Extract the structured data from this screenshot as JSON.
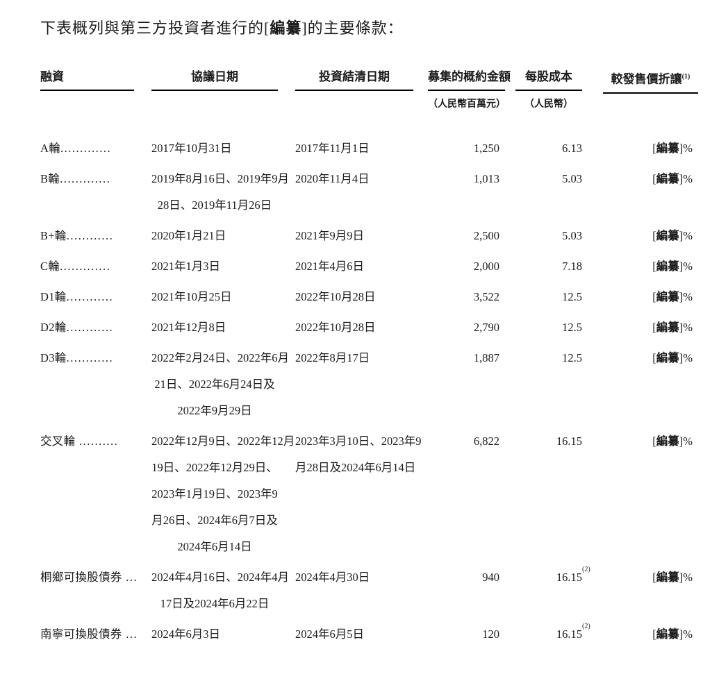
{
  "title": {
    "prefix": "下表概列與第三方投資者進行的[",
    "redacted": "編纂",
    "suffix": "]的主要條款："
  },
  "table": {
    "headers": {
      "financing": "融資",
      "agreement_date": "協議日期",
      "settlement_date": "投資結清日期",
      "amount": "募集的概約金額",
      "cost_per_share": "每股成本",
      "discount": "較發售價折讓",
      "discount_note": "(1)"
    },
    "units": {
      "amount_unit": "（人民幣百萬元）",
      "cost_unit": "（人民幣）"
    },
    "redacted_label": "編纂",
    "rows": [
      {
        "name": "A輪",
        "leader": ".............",
        "agreement_lines": [
          "2017年10月31日"
        ],
        "settlement_lines": [
          "2017年11月1日"
        ],
        "amount": "1,250",
        "cost": "6.13",
        "cost_sup": "",
        "discount": "[編纂]%"
      },
      {
        "name": "B輪",
        "leader": ".............",
        "agreement_lines": [
          "2019年8月16日、2019年9月",
          "28日、2019年11月26日"
        ],
        "settlement_lines": [
          "2020年11月4日"
        ],
        "amount": "1,013",
        "cost": "5.03",
        "cost_sup": "",
        "discount": "[編纂]%"
      },
      {
        "name": "B+輪",
        "leader": "............",
        "agreement_lines": [
          "2020年1月21日"
        ],
        "settlement_lines": [
          "2021年9月9日"
        ],
        "amount": "2,500",
        "cost": "5.03",
        "cost_sup": "",
        "discount": "[編纂]%"
      },
      {
        "name": "C輪",
        "leader": ".............",
        "agreement_lines": [
          "2021年1月3日"
        ],
        "settlement_lines": [
          "2021年4月6日"
        ],
        "amount": "2,000",
        "cost": "7.18",
        "cost_sup": "",
        "discount": "[編纂]%"
      },
      {
        "name": "D1輪",
        "leader": "............",
        "agreement_lines": [
          "2021年10月25日"
        ],
        "settlement_lines": [
          "2022年10月28日"
        ],
        "amount": "3,522",
        "cost": "12.5",
        "cost_sup": "",
        "discount": "[編纂]%"
      },
      {
        "name": "D2輪",
        "leader": "............",
        "agreement_lines": [
          "2021年12月8日"
        ],
        "settlement_lines": [
          "2022年10月28日"
        ],
        "amount": "2,790",
        "cost": "12.5",
        "cost_sup": "",
        "discount": "[編纂]%"
      },
      {
        "name": "D3輪",
        "leader": "............",
        "agreement_lines": [
          "2022年2月24日、2022年6月",
          "21日、2022年6月24日及",
          "2022年9月29日"
        ],
        "settlement_lines": [
          "2022年8月17日"
        ],
        "amount": "1,887",
        "cost": "12.5",
        "cost_sup": "",
        "discount": "[編纂]%"
      },
      {
        "name": "交叉輪",
        "leader": " ..........",
        "agreement_lines": [
          "2022年12月9日、2022年12月",
          "19日、2022年12月29日、",
          "2023年1月19日、2023年9",
          "月26日、2024年6月7日及",
          "2024年6月14日"
        ],
        "settlement_lines": [
          "2023年3月10日、2023年9",
          "月28日及2024年6月14日"
        ],
        "amount": "6,822",
        "cost": "16.15",
        "cost_sup": "",
        "discount": "[編纂]%"
      },
      {
        "name": "桐鄉可換股債券",
        "leader": " ...",
        "agreement_lines": [
          "2024年4月16日、2024年4月",
          "17日及2024年6月22日"
        ],
        "settlement_lines": [
          "2024年4月30日"
        ],
        "amount": "940",
        "cost": "16.15",
        "cost_sup": "(2)",
        "discount": "[編纂]%"
      },
      {
        "name": "南寧可換股債券",
        "leader": " ...",
        "agreement_lines": [
          "2024年6月3日"
        ],
        "settlement_lines": [
          "2024年6月5日"
        ],
        "amount": "120",
        "cost": "16.15",
        "cost_sup": "(2)",
        "discount": "[編纂]%"
      }
    ]
  }
}
